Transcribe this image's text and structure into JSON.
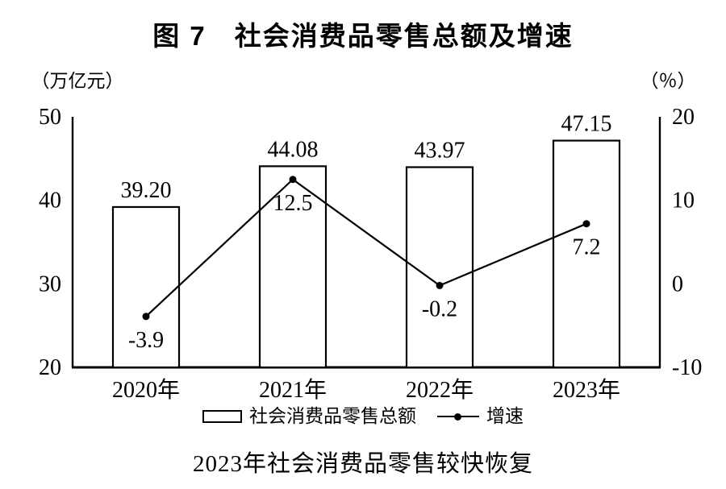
{
  "chart_data": {
    "type": "bar+line",
    "title": "图 7　社会消费品零售总额及增速",
    "caption": "2023年社会消费品零售较快恢复",
    "categories": [
      "2020年",
      "2021年",
      "2022年",
      "2023年"
    ],
    "series": [
      {
        "name": "社会消费品零售总额",
        "type": "bar",
        "axis": "left",
        "values": [
          39.2,
          44.08,
          43.97,
          47.15
        ],
        "value_labels": [
          "39.20",
          "44.08",
          "43.97",
          "47.15"
        ]
      },
      {
        "name": "增速",
        "type": "line",
        "axis": "right",
        "values": [
          -3.9,
          12.5,
          -0.2,
          7.2
        ],
        "value_labels": [
          "-3.9",
          "12.5",
          "-0.2",
          "7.2"
        ]
      }
    ],
    "left_axis": {
      "unit": "（万亿元）",
      "min": 20,
      "max": 50,
      "ticks": [
        20,
        30,
        40,
        50
      ]
    },
    "right_axis": {
      "unit": "（％）",
      "min": -10,
      "max": 20,
      "ticks": [
        -10,
        0,
        10,
        20
      ]
    },
    "grid": false,
    "legend_position": "bottom",
    "colors": {
      "background": "#ffffff",
      "bar_fill": "#ffffff",
      "stroke": "#000000",
      "text": "#000000"
    }
  }
}
